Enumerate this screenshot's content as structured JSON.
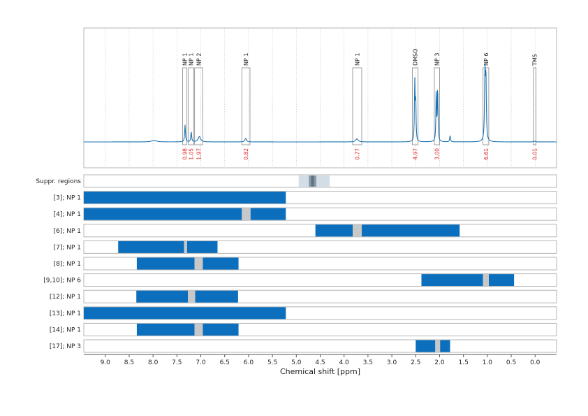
{
  "chart_data": {
    "type": "nmr-spectrum-with-regions",
    "xlabel": "Chemical shift [ppm]",
    "xlim": [
      9.45,
      -0.45
    ],
    "x_reversed": true,
    "xticks": [
      9.0,
      8.5,
      8.0,
      7.5,
      7.0,
      6.5,
      6.0,
      5.5,
      5.0,
      4.5,
      4.0,
      3.5,
      3.0,
      2.5,
      2.0,
      1.5,
      1.0,
      0.5,
      0.0
    ],
    "xtick_labels": [
      "9.0",
      "8.5",
      "8.0",
      "7.5",
      "7.0",
      "6.5",
      "6.0",
      "5.5",
      "5.0",
      "4.5",
      "4.0",
      "3.5",
      "3.0",
      "2.5",
      "2.0",
      "1.5",
      "1.0",
      "0.5",
      "0.0"
    ],
    "grid": "vertical-dotted",
    "colors": {
      "spectrum": "#1a73b5",
      "region": "#0b6fbd",
      "integral": "#e02020",
      "box": "#888888",
      "suppr_light": "#d3dde6",
      "suppr_dark": "#5e7585",
      "gap": "#c8c8c8"
    },
    "spectrum_peaks": [
      {
        "ppm": 7.98,
        "height": 0.02,
        "width": 0.06
      },
      {
        "ppm": 7.33,
        "height": 0.22,
        "width": 0.01
      },
      {
        "ppm": 7.2,
        "height": 0.13,
        "width": 0.01
      },
      {
        "ppm": 7.03,
        "height": 0.07,
        "width": 0.03
      },
      {
        "ppm": 6.06,
        "height": 0.045,
        "width": 0.02
      },
      {
        "ppm": 3.73,
        "height": 0.04,
        "width": 0.03
      },
      {
        "ppm": 2.52,
        "height": 0.78,
        "width": 0.008
      },
      {
        "ppm": 2.5,
        "height": 0.55,
        "width": 0.008
      },
      {
        "ppm": 2.07,
        "height": 0.68,
        "width": 0.008
      },
      {
        "ppm": 2.04,
        "height": 0.72,
        "width": 0.008
      },
      {
        "ppm": 1.78,
        "height": 0.08,
        "width": 0.01
      },
      {
        "ppm": 1.05,
        "height": 0.86,
        "width": 0.01
      },
      {
        "ppm": 1.03,
        "height": 0.82,
        "width": 0.01
      },
      {
        "ppm": 0.01,
        "height": 0.01,
        "width": 0.02
      }
    ],
    "annotations": [
      {
        "label": "NP 1",
        "from": 7.38,
        "to": 7.29,
        "integral": "0.98"
      },
      {
        "label": "NP 1",
        "from": 7.26,
        "to": 7.15,
        "integral": "1.05"
      },
      {
        "label": "NP 2",
        "from": 7.13,
        "to": 6.96,
        "integral": "1.97"
      },
      {
        "label": "NP 1",
        "from": 6.14,
        "to": 5.97,
        "integral": "0.82"
      },
      {
        "label": "NP 1",
        "from": 3.82,
        "to": 3.63,
        "integral": "0.77"
      },
      {
        "label": "DMSO",
        "from": 2.57,
        "to": 2.45,
        "integral": "4.97"
      },
      {
        "label": "NP 3",
        "from": 2.11,
        "to": 2.0,
        "integral": "3.00"
      },
      {
        "label": "NP 6",
        "from": 1.09,
        "to": 0.97,
        "integral": "6.61"
      },
      {
        "label": "TMS",
        "from": 0.04,
        "to": -0.02,
        "integral": "0.01"
      }
    ],
    "rows": [
      {
        "label": "Suppr. regions",
        "kind": "suppr",
        "light": [
          [
            4.95,
            4.3
          ]
        ],
        "dark": [
          [
            4.74,
            4.58
          ]
        ]
      },
      {
        "label": "[3]; NP 1",
        "segments": [
          [
            9.45,
            5.22
          ]
        ],
        "gaps": []
      },
      {
        "label": "[4]; NP 1",
        "segments": [
          [
            9.45,
            6.14
          ],
          [
            5.96,
            5.22
          ]
        ],
        "gaps": [
          [
            6.14,
            5.96
          ]
        ]
      },
      {
        "label": "[6]; NP 1",
        "segments": [
          [
            4.6,
            3.82
          ],
          [
            3.63,
            1.58
          ]
        ],
        "gaps": [
          [
            3.82,
            3.63
          ]
        ]
      },
      {
        "label": "[7]; NP 1",
        "segments": [
          [
            8.73,
            7.35
          ],
          [
            7.29,
            6.65
          ]
        ],
        "gaps": [
          [
            7.35,
            7.29
          ]
        ]
      },
      {
        "label": "[8]; NP 1",
        "segments": [
          [
            8.34,
            7.13
          ],
          [
            6.96,
            6.21
          ]
        ],
        "gaps": [
          [
            7.13,
            6.96
          ]
        ]
      },
      {
        "label": "[9,10]; NP 6",
        "segments": [
          [
            2.38,
            1.09
          ],
          [
            0.97,
            0.44
          ]
        ],
        "gaps": [
          [
            1.09,
            0.97
          ]
        ]
      },
      {
        "label": "[12]; NP 1",
        "segments": [
          [
            8.35,
            7.27
          ],
          [
            7.12,
            6.22
          ]
        ],
        "gaps": [
          [
            7.27,
            7.12
          ]
        ]
      },
      {
        "label": "[13]; NP 1",
        "segments": [
          [
            9.45,
            5.22
          ]
        ],
        "gaps": []
      },
      {
        "label": "[14]; NP 1",
        "segments": [
          [
            8.34,
            7.13
          ],
          [
            6.96,
            6.21
          ]
        ],
        "gaps": [
          [
            7.13,
            6.96
          ]
        ]
      },
      {
        "label": "[17]; NP 3",
        "segments": [
          [
            2.5,
            2.09
          ],
          [
            1.99,
            1.78
          ]
        ],
        "gaps": [
          [
            2.09,
            1.99
          ]
        ]
      }
    ]
  }
}
